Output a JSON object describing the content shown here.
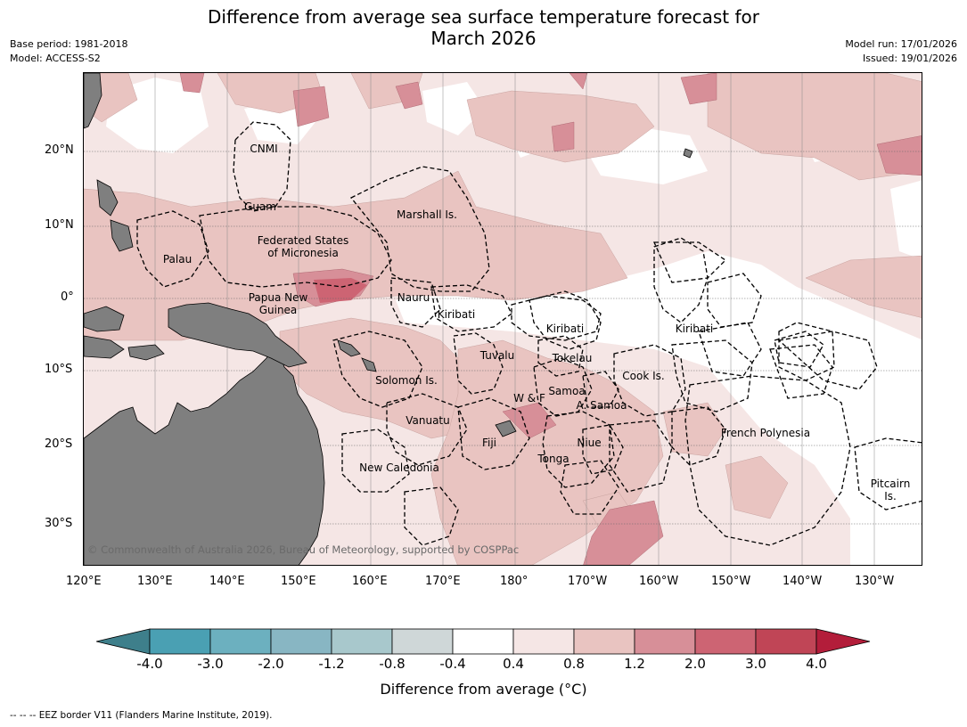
{
  "title_line1": "Difference from average sea surface temperature forecast for",
  "title_line2": "March 2026",
  "meta": {
    "base_period": "Base period: 1981-2018",
    "model": "Model: ACCESS-S2",
    "model_run": "Model run: 17/01/2026",
    "issued": "Issued: 19/01/2026"
  },
  "axes": {
    "lat_labels": [
      "20°N",
      "10°N",
      "0°",
      "10°S",
      "20°S",
      "30°S"
    ],
    "lon_labels": [
      "120°E",
      "130°E",
      "140°E",
      "150°E",
      "160°E",
      "170°E",
      "180°",
      "170°W",
      "160°W",
      "150°W",
      "140°W",
      "130°W"
    ]
  },
  "places": [
    {
      "name": "CNMI"
    },
    {
      "name": "Guam"
    },
    {
      "name": "Marshall Is."
    },
    {
      "name": "Federated States"
    },
    {
      "name": "of Micronesia"
    },
    {
      "name": "Palau"
    },
    {
      "name": "Papua New"
    },
    {
      "name": "Guinea"
    },
    {
      "name": "Nauru"
    },
    {
      "name": "Kiribati"
    },
    {
      "name": "Kiribati"
    },
    {
      "name": "Kiribati"
    },
    {
      "name": "Tuvalu"
    },
    {
      "name": "Tokelau"
    },
    {
      "name": "Solomon Is."
    },
    {
      "name": "Cook Is."
    },
    {
      "name": "Samoa"
    },
    {
      "name": "W & F"
    },
    {
      "name": "A. Samoa"
    },
    {
      "name": "Vanuatu"
    },
    {
      "name": "Fiji"
    },
    {
      "name": "Niue"
    },
    {
      "name": "French Polynesia"
    },
    {
      "name": "Tonga"
    },
    {
      "name": "New Caledonia"
    },
    {
      "name": "Pitcairn"
    },
    {
      "name": "Is."
    }
  ],
  "copyright": "© Commonwealth of Australia 2026, Bureau of Meteorology, supported by COSPPac",
  "colorbar": {
    "ticks": [
      "-4.0",
      "-3.0",
      "-2.0",
      "-1.2",
      "-0.8",
      "-0.4",
      "0.4",
      "0.8",
      "1.2",
      "2.0",
      "3.0",
      "4.0"
    ],
    "colors": [
      "#3e7f8b",
      "#4aa0b3",
      "#6cb0bf",
      "#88b6c3",
      "#a8c8cc",
      "#cfd7d8",
      "#ffffff",
      "#f5e6e5",
      "#e9c4c1",
      "#d78f98",
      "#cd6473",
      "#c04556",
      "#b31d3a"
    ],
    "title": "Difference from average (°C)"
  },
  "footnote": "-- -- -- EEZ border V11 (Flanders Marine Institute, 2019).",
  "colors": {
    "land": "#7f7f7f",
    "anom_0_4": "#f5e6e5",
    "anom_0_8": "#e9c4c1",
    "anom_1_2": "#d78f98",
    "anom_2_0": "#cd6473"
  }
}
